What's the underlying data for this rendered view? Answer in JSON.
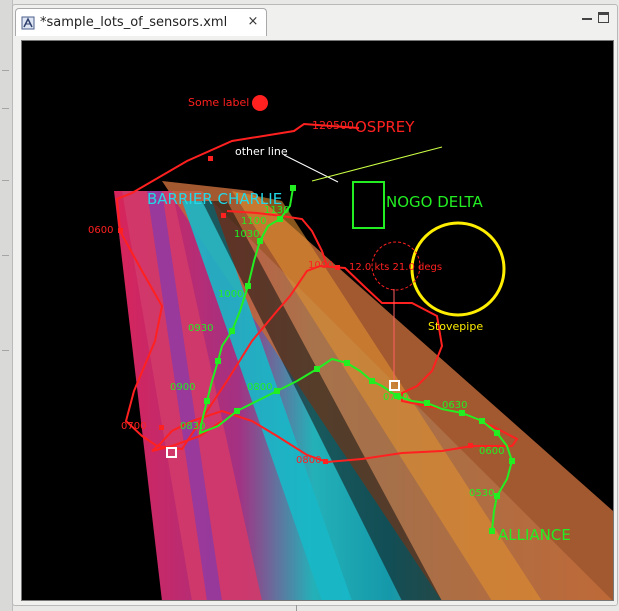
{
  "tab": {
    "title": "*sample_lots_of_sensors.xml",
    "close_icon": "×"
  },
  "colors": {
    "red": "#ff2020",
    "green": "#22ee22",
    "yellow": "#ffee00",
    "cyan": "#22d8e6",
    "lime": "#ccff44",
    "white": "#ffffff"
  },
  "plot": {
    "labels": {
      "some_label": "Some label",
      "osprey_time": "120500",
      "osprey": "OSPREY",
      "other_line": "other line",
      "barrier_charlie": "BARRIER CHARLIE",
      "nogo_delta": "NOGO DELTA",
      "stovepipe": "Stovepipe",
      "alliance": "ALLIANCE",
      "solution": "12.0 kts 21.0 degs"
    },
    "red_times": [
      "0600",
      "1000",
      "0700",
      "0800",
      "0900",
      "0600"
    ],
    "green_times": [
      "1130",
      "1100",
      "1030",
      "1000",
      "0930",
      "0900",
      "0800",
      "0830",
      "0700",
      "0630",
      "0600",
      "0530"
    ]
  }
}
